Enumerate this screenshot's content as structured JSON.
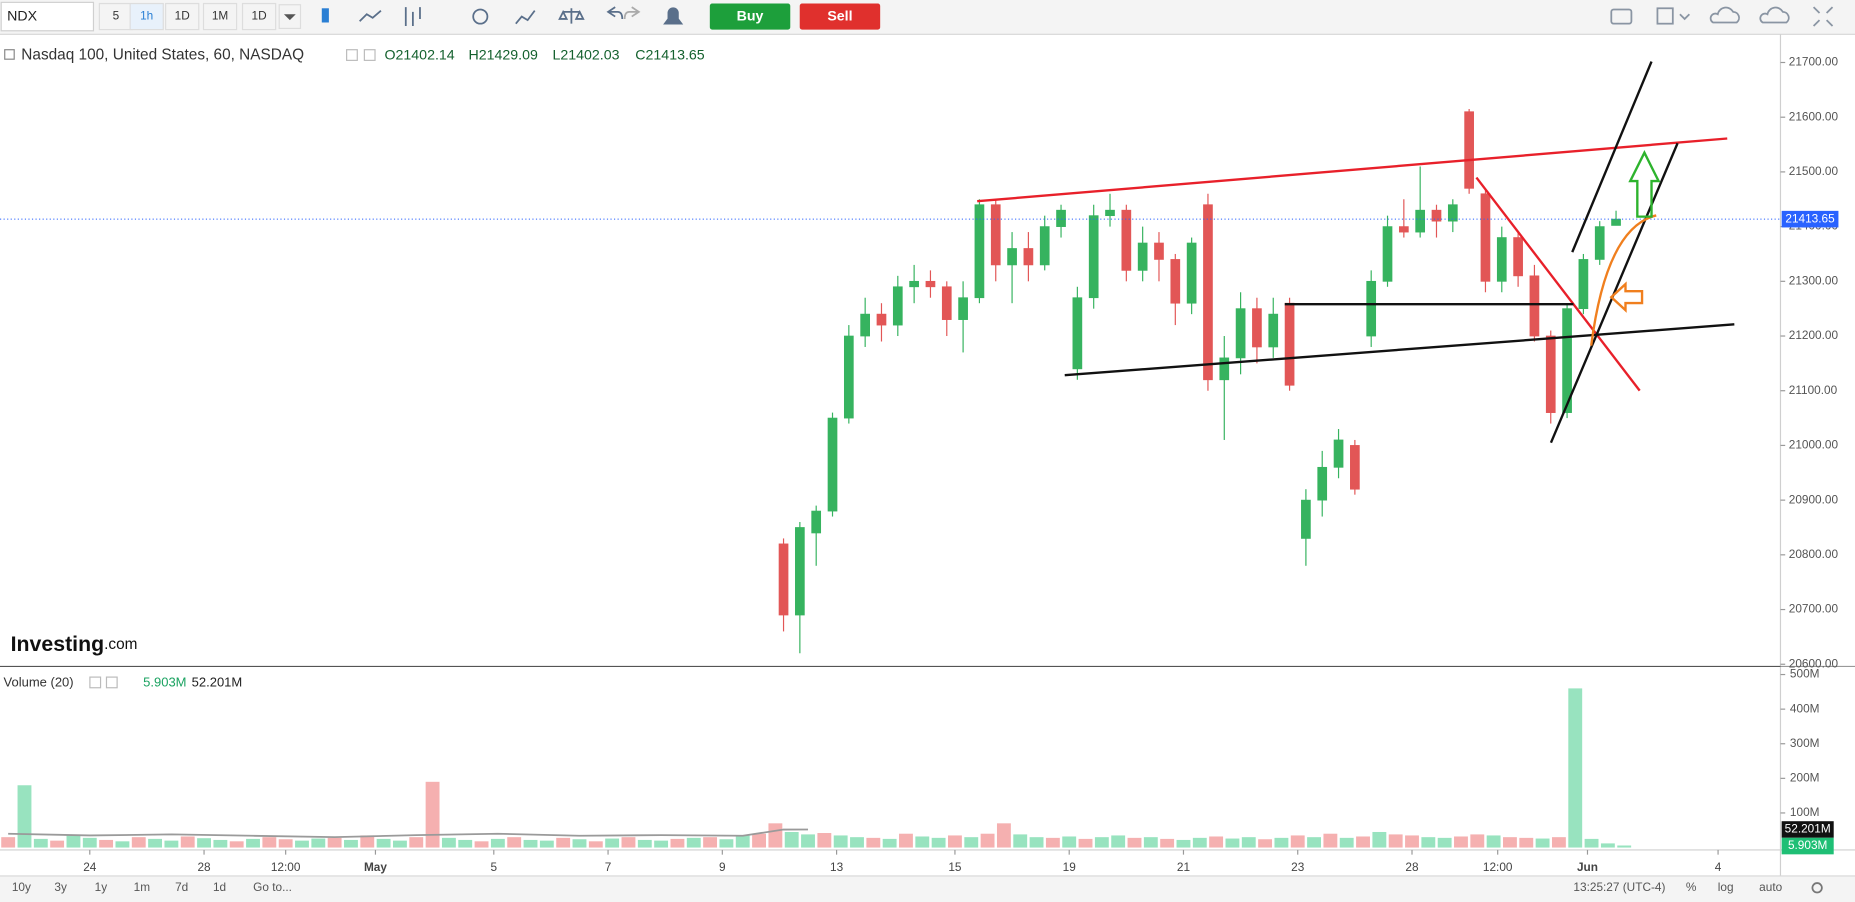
{
  "toolbar": {
    "symbol": "NDX",
    "intervals": [
      "5",
      "1h",
      "1D",
      "1M",
      "1D"
    ],
    "buy": "Buy",
    "sell": "Sell"
  },
  "chart_data": {
    "type": "candlestick",
    "title": "Nasdaq 100, United States, 60, NASDAQ",
    "ohlc_legend": [
      "O21402.14",
      "H21429.09",
      "L21402.03",
      "C21413.65"
    ],
    "x": [
      96,
      98,
      100,
      102,
      104,
      106,
      108,
      110,
      112,
      114,
      116,
      118,
      120,
      122,
      124,
      126,
      128,
      130,
      132,
      134,
      136,
      138,
      140,
      142,
      144,
      146,
      148,
      150,
      152,
      154,
      156,
      158,
      160,
      162,
      164,
      166,
      168,
      170,
      172,
      174,
      176,
      178,
      180,
      182,
      184,
      186,
      188,
      190,
      192,
      194,
      196,
      198
    ],
    "open": [
      20820,
      20690,
      20840,
      20880,
      21050,
      21200,
      21240,
      21220,
      21290,
      21300,
      21290,
      21230,
      21270,
      21440,
      21330,
      21360,
      21330,
      21400,
      21140,
      21270,
      21420,
      21430,
      21320,
      21370,
      21340,
      21260,
      21440,
      21120,
      21160,
      21250,
      21180,
      21260,
      20830,
      20900,
      20960,
      21000,
      21200,
      21300,
      21400,
      21390,
      21430,
      21410,
      21610,
      21460,
      21300,
      21380,
      21310,
      21200,
      21060,
      21250,
      21340,
      21402.14
    ],
    "high": [
      20830,
      20860,
      20890,
      21060,
      21220,
      21270,
      21260,
      21310,
      21330,
      21320,
      21300,
      21300,
      21450,
      21450,
      21390,
      21390,
      21420,
      21440,
      21290,
      21440,
      21460,
      21440,
      21400,
      21390,
      21350,
      21380,
      21460,
      21200,
      21280,
      21270,
      21270,
      21270,
      20920,
      20990,
      21030,
      21010,
      21320,
      21420,
      21450,
      21510,
      21440,
      21450,
      21615,
      21470,
      21400,
      21390,
      21330,
      21210,
      21260,
      21350,
      21410,
      21429.09
    ],
    "low": [
      20660,
      20620,
      20780,
      20870,
      21040,
      21180,
      21190,
      21200,
      21260,
      21270,
      21200,
      21170,
      21260,
      21300,
      21260,
      21300,
      21320,
      21380,
      21120,
      21250,
      21400,
      21300,
      21300,
      21300,
      21220,
      21240,
      21100,
      21010,
      21130,
      21150,
      21160,
      21100,
      20780,
      20870,
      20940,
      20910,
      21180,
      21290,
      21380,
      21380,
      21380,
      21390,
      21460,
      21280,
      21280,
      21290,
      21190,
      21040,
      21050,
      21240,
      21330,
      21402.03
    ],
    "close": [
      20690,
      20850,
      20880,
      21050,
      21200,
      21240,
      21220,
      21290,
      21300,
      21290,
      21230,
      21270,
      21440,
      21330,
      21360,
      21330,
      21400,
      21430,
      21270,
      21420,
      21430,
      21320,
      21370,
      21340,
      21260,
      21370,
      21120,
      21160,
      21250,
      21180,
      21240,
      21110,
      20900,
      20960,
      21010,
      20920,
      21300,
      21400,
      21390,
      21430,
      21410,
      21440,
      21470,
      21300,
      21380,
      21310,
      21200,
      21060,
      21250,
      21340,
      21400,
      21413.65
    ],
    "up_color": "#36b35f",
    "down_color": "#e25656",
    "xlim": [
      0,
      218
    ],
    "xticks": [
      {
        "value": 11,
        "label": "24"
      },
      {
        "value": 25,
        "label": "28"
      },
      {
        "value": 35,
        "label": "12:00"
      },
      {
        "value": 46,
        "label": "May"
      },
      {
        "value": 60.5,
        "label": "5"
      },
      {
        "value": 74.5,
        "label": "7"
      },
      {
        "value": 88.5,
        "label": "9"
      },
      {
        "value": 102.5,
        "label": "13"
      },
      {
        "value": 117,
        "label": "15"
      },
      {
        "value": 131,
        "label": "19"
      },
      {
        "value": 145,
        "label": "21"
      },
      {
        "value": 159,
        "label": "23"
      },
      {
        "value": 173,
        "label": "28"
      },
      {
        "value": 183.5,
        "label": "12:00"
      },
      {
        "value": 194.5,
        "label": "Jun"
      },
      {
        "value": 210.5,
        "label": "4"
      }
    ],
    "ylim": [
      20596,
      21745
    ],
    "yticks": [
      {
        "value": 20600,
        "label": "20600.00"
      },
      {
        "value": 20700,
        "label": "20700.00"
      },
      {
        "value": 20800,
        "label": "20800.00"
      },
      {
        "value": 20900,
        "label": "20900.00"
      },
      {
        "value": 21000,
        "label": "21000.00"
      },
      {
        "value": 21100,
        "label": "21100.00"
      },
      {
        "value": 21200,
        "label": "21200.00"
      },
      {
        "value": 21300,
        "label": "21300.00"
      },
      {
        "value": 21400,
        "label": "21400.00"
      },
      {
        "value": 21500,
        "label": "21500.00"
      },
      {
        "value": 21600,
        "label": "21600.00"
      },
      {
        "value": 21700,
        "label": "21700.00"
      }
    ],
    "last_price": {
      "value": 21413.65,
      "label": "21413.65",
      "color": "#2962ff"
    },
    "volume": {
      "title": "Volume (20)",
      "last_label": "5.903M",
      "ma_label": "52.201M",
      "x": [
        1,
        3,
        5,
        7,
        9,
        11,
        13,
        15,
        17,
        19,
        21,
        23,
        25,
        27,
        29,
        31,
        33,
        35,
        37,
        39,
        41,
        43,
        45,
        47,
        49,
        51,
        53,
        55,
        57,
        59,
        61,
        63,
        65,
        67,
        69,
        71,
        73,
        75,
        77,
        79,
        81,
        83,
        85,
        87,
        89,
        91,
        93,
        95,
        97,
        99,
        101,
        103,
        105,
        107,
        109,
        111,
        113,
        115,
        117,
        119,
        121,
        123,
        125,
        127,
        129,
        131,
        133,
        135,
        137,
        139,
        141,
        143,
        145,
        147,
        149,
        151,
        153,
        155,
        157,
        159,
        161,
        163,
        165,
        167,
        169,
        171,
        173,
        175,
        177,
        179,
        181,
        183,
        185,
        187,
        189,
        191,
        193,
        195,
        197,
        199
      ],
      "values": [
        30,
        180,
        25,
        20,
        35,
        28,
        22,
        18,
        30,
        25,
        20,
        32,
        27,
        22,
        18,
        25,
        30,
        24,
        20,
        26,
        28,
        22,
        35,
        25,
        20,
        30,
        190,
        28,
        22,
        18,
        25,
        30,
        22,
        20,
        28,
        24,
        18,
        26,
        30,
        22,
        20,
        25,
        28,
        30,
        24,
        35,
        40,
        70,
        45,
        38,
        42,
        35,
        30,
        28,
        25,
        40,
        32,
        28,
        35,
        30,
        40,
        70,
        38,
        30,
        28,
        32,
        25,
        30,
        35,
        28,
        30,
        25,
        22,
        28,
        32,
        26,
        30,
        24,
        28,
        35,
        30,
        40,
        28,
        32,
        45,
        38,
        35,
        30,
        28,
        32,
        38,
        35,
        30,
        28,
        26,
        30,
        460,
        25,
        12,
        5.903
      ],
      "colors": [
        "#f5b0b0",
        "#98e3bf",
        "#98e3bf",
        "#f5b0b0",
        "#98e3bf",
        "#98e3bf",
        "#f5b0b0",
        "#98e3bf",
        "#f5b0b0",
        "#98e3bf",
        "#98e3bf",
        "#f5b0b0",
        "#98e3bf",
        "#98e3bf",
        "#f5b0b0",
        "#98e3bf",
        "#f5b0b0",
        "#f5b0b0",
        "#98e3bf",
        "#98e3bf",
        "#f5b0b0",
        "#98e3bf",
        "#f5b0b0",
        "#98e3bf",
        "#98e3bf",
        "#f5b0b0",
        "#f5b0b0",
        "#98e3bf",
        "#98e3bf",
        "#f5b0b0",
        "#98e3bf",
        "#f5b0b0",
        "#98e3bf",
        "#98e3bf",
        "#f5b0b0",
        "#98e3bf",
        "#f5b0b0",
        "#98e3bf",
        "#f5b0b0",
        "#98e3bf",
        "#98e3bf",
        "#f5b0b0",
        "#98e3bf",
        "#f5b0b0",
        "#98e3bf",
        "#98e3bf",
        "#f5b0b0",
        "#f5b0b0",
        "#98e3bf",
        "#98e3bf",
        "#f5b0b0",
        "#98e3bf",
        "#98e3bf",
        "#f5b0b0",
        "#98e3bf",
        "#f5b0b0",
        "#98e3bf",
        "#98e3bf",
        "#f5b0b0",
        "#98e3bf",
        "#f5b0b0",
        "#f5b0b0",
        "#98e3bf",
        "#98e3bf",
        "#f5b0b0",
        "#98e3bf",
        "#f5b0b0",
        "#98e3bf",
        "#98e3bf",
        "#f5b0b0",
        "#98e3bf",
        "#f5b0b0",
        "#98e3bf",
        "#98e3bf",
        "#f5b0b0",
        "#98e3bf",
        "#98e3bf",
        "#f5b0b0",
        "#98e3bf",
        "#f5b0b0",
        "#98e3bf",
        "#f5b0b0",
        "#98e3bf",
        "#f5b0b0",
        "#98e3bf",
        "#f5b0b0",
        "#f5b0b0",
        "#98e3bf",
        "#98e3bf",
        "#f5b0b0",
        "#f5b0b0",
        "#98e3bf",
        "#f5b0b0",
        "#f5b0b0",
        "#98e3bf",
        "#f5b0b0",
        "#98e3bf",
        "#98e3bf",
        "#98e3bf",
        "#98e3bf"
      ],
      "ylim": [
        0,
        520
      ],
      "yticks": [
        {
          "value": 100,
          "label": "100M"
        },
        {
          "value": 200,
          "label": "200M"
        },
        {
          "value": 300,
          "label": "300M"
        },
        {
          "value": 400,
          "label": "400M"
        },
        {
          "value": 500,
          "label": "500M"
        }
      ],
      "ma": {
        "x": [
          1,
          11,
          21,
          31,
          41,
          51,
          61,
          71,
          81,
          91,
          96,
          99
        ],
        "values": [
          40,
          35,
          38,
          34,
          30,
          36,
          40,
          34,
          36,
          34,
          52,
          52.201
        ],
        "color": "#9a9a9a"
      }
    }
  },
  "branding": {
    "logo_bold": "Investing",
    "logo_suffix": ".com"
  },
  "footer": {
    "ranges": [
      "10y",
      "3y",
      "1y",
      "1m",
      "7d",
      "1d"
    ],
    "goto": "Go to...",
    "clock": "13:25:27 (UTC-4)",
    "options": [
      "%",
      "log",
      "auto"
    ]
  }
}
